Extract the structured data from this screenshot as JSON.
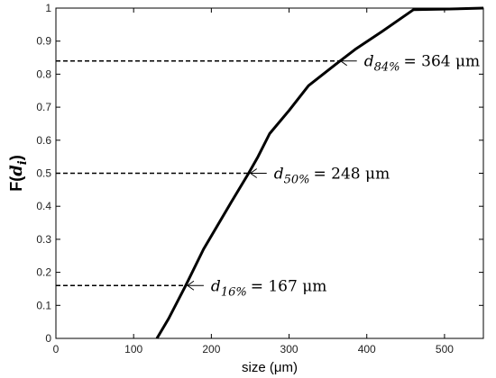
{
  "chart_data": {
    "type": "line",
    "xlabel": "size (μm)",
    "ylabel": {
      "prefix": "F(",
      "var": "d",
      "sub": "i",
      "suffix": ")"
    },
    "xlim": [
      0,
      550
    ],
    "ylim": [
      0,
      1
    ],
    "xticks": [
      "0",
      "100",
      "200",
      "300",
      "400",
      "500"
    ],
    "yticks": [
      "0",
      "0.1",
      "0.2",
      "0.3",
      "0.4",
      "0.5",
      "0.6",
      "0.7",
      "0.8",
      "0.9",
      "1"
    ],
    "grid": false,
    "x": [
      130,
      145,
      167,
      190,
      225,
      248,
      260,
      275,
      300,
      325,
      360,
      385,
      420,
      460,
      500,
      550
    ],
    "y": [
      0.0,
      0.06,
      0.16,
      0.27,
      0.41,
      0.5,
      0.55,
      0.62,
      0.69,
      0.765,
      0.83,
      0.875,
      0.93,
      0.995,
      0.997,
      1.0
    ],
    "annotations": [
      {
        "var": "d",
        "sub": "84%",
        "text": "= 364 μm",
        "x": 364,
        "y": 0.84
      },
      {
        "var": "d",
        "sub": "50%",
        "text": "= 248 μm",
        "x": 248,
        "y": 0.5
      },
      {
        "var": "d",
        "sub": "16%",
        "text": "= 167 μm",
        "x": 167,
        "y": 0.16
      }
    ]
  }
}
